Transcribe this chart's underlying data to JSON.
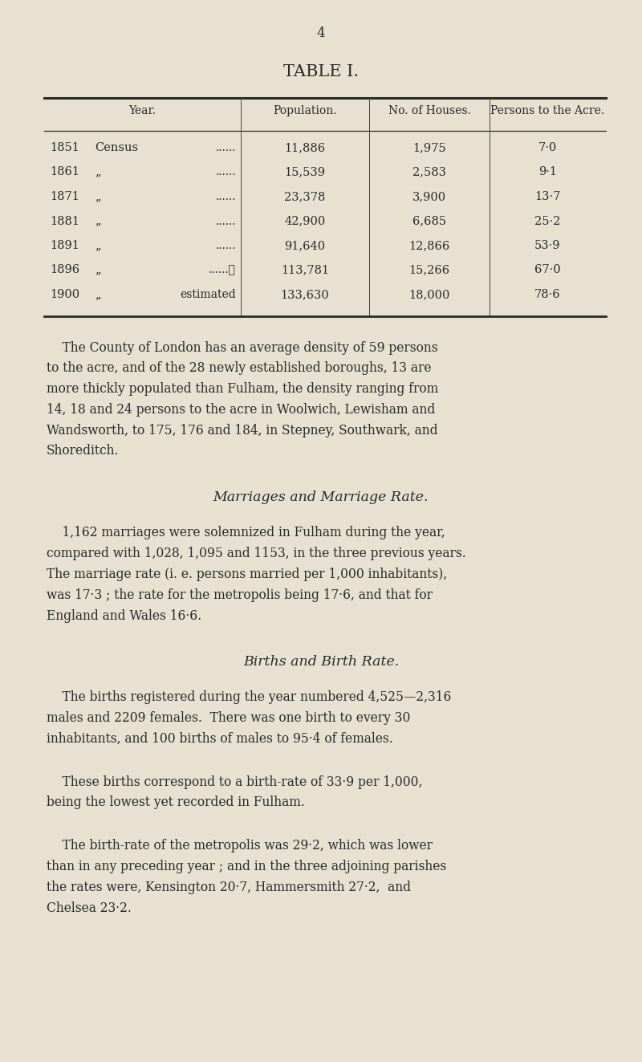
{
  "page_number": "4",
  "table_title": "TABLE I.",
  "bg_color": "#e8e0d0",
  "text_color": "#2a2a2a",
  "col_headers": [
    "Year.",
    "Population.",
    "No. of Houses.",
    "Persons to the Acre."
  ],
  "year_col": [
    [
      "1851",
      "Census",
      "......"
    ],
    [
      "1861",
      "„",
      "......"
    ],
    [
      "1871",
      "„",
      "......"
    ],
    [
      "1881",
      "„",
      "......"
    ],
    [
      "1891",
      "„",
      "......"
    ],
    [
      "1896",
      "„",
      "......∷"
    ],
    [
      "1900",
      "„",
      "estimated"
    ]
  ],
  "pop_vals": [
    "11,886",
    "15,539",
    "23,378",
    "42,900",
    "91,640",
    "113,781",
    "133,630"
  ],
  "house_vals": [
    "1,975",
    "2,583",
    "3,900",
    "6,685",
    "12,866",
    "15,266",
    "18,000"
  ],
  "acre_vals": [
    "7·0",
    "9·1",
    "13·7",
    "25·2",
    "53·9",
    "67·0",
    "78·6"
  ],
  "para1": "The County of London has an average density of 59 persons to the acre, and of the 28 newly established boroughs, 13 are more thickly populated than Fulham, the density ranging from 14, 18 and 24 persons to the acre in Woolwich, Lewisham and Wandsworth, to 175, 176 and 184, in Stepney, Southwark, and Shoreditch.",
  "section1_title": "Marriages and Marriage Rate.",
  "para2_lines": [
    "    1,162 marriages were solemnized in Fulham during the year,",
    "compared with 1,028, 1,095 and 1153, in the three previous years.",
    "The marriage rate (i. e. persons married per 1,000 inhabitants),",
    "was 17·3 ; the rate for the metropolis being 17·6, and that for",
    "England and Wales 16·6."
  ],
  "section2_title": "Births and Birth Rate.",
  "para3_lines": [
    "    The births registered during the year numbered 4,525—2,316",
    "males and 2209 females.  There was one birth to every 30",
    "inhabitants, and 100 births of males to 95·4 of females."
  ],
  "para4_lines": [
    "    These births correspond to a birth-rate of 33·9 per 1,000,",
    "being the lowest yet recorded in Fulham."
  ],
  "para5_lines": [
    "    The birth-rate of the metropolis was 29·2, which was lower",
    "than in any preceding year ; and in the three adjoining parishes",
    "the rates were, Kensington 20·7, Hammersmith 27·2,  and",
    "Chelsea 23·2."
  ],
  "para1_lines": [
    "    The County of London has an average density of 59 persons",
    "to the acre, and of the 28 newly established boroughs, 13 are",
    "more thickly populated than Fulham, the density ranging from",
    "14, 18 and 24 persons to the acre in Woolwich, Lewisham and",
    "Wandsworth, to 175, 176 and 184, in Stepney, Southwark, and",
    "Shoreditch."
  ]
}
